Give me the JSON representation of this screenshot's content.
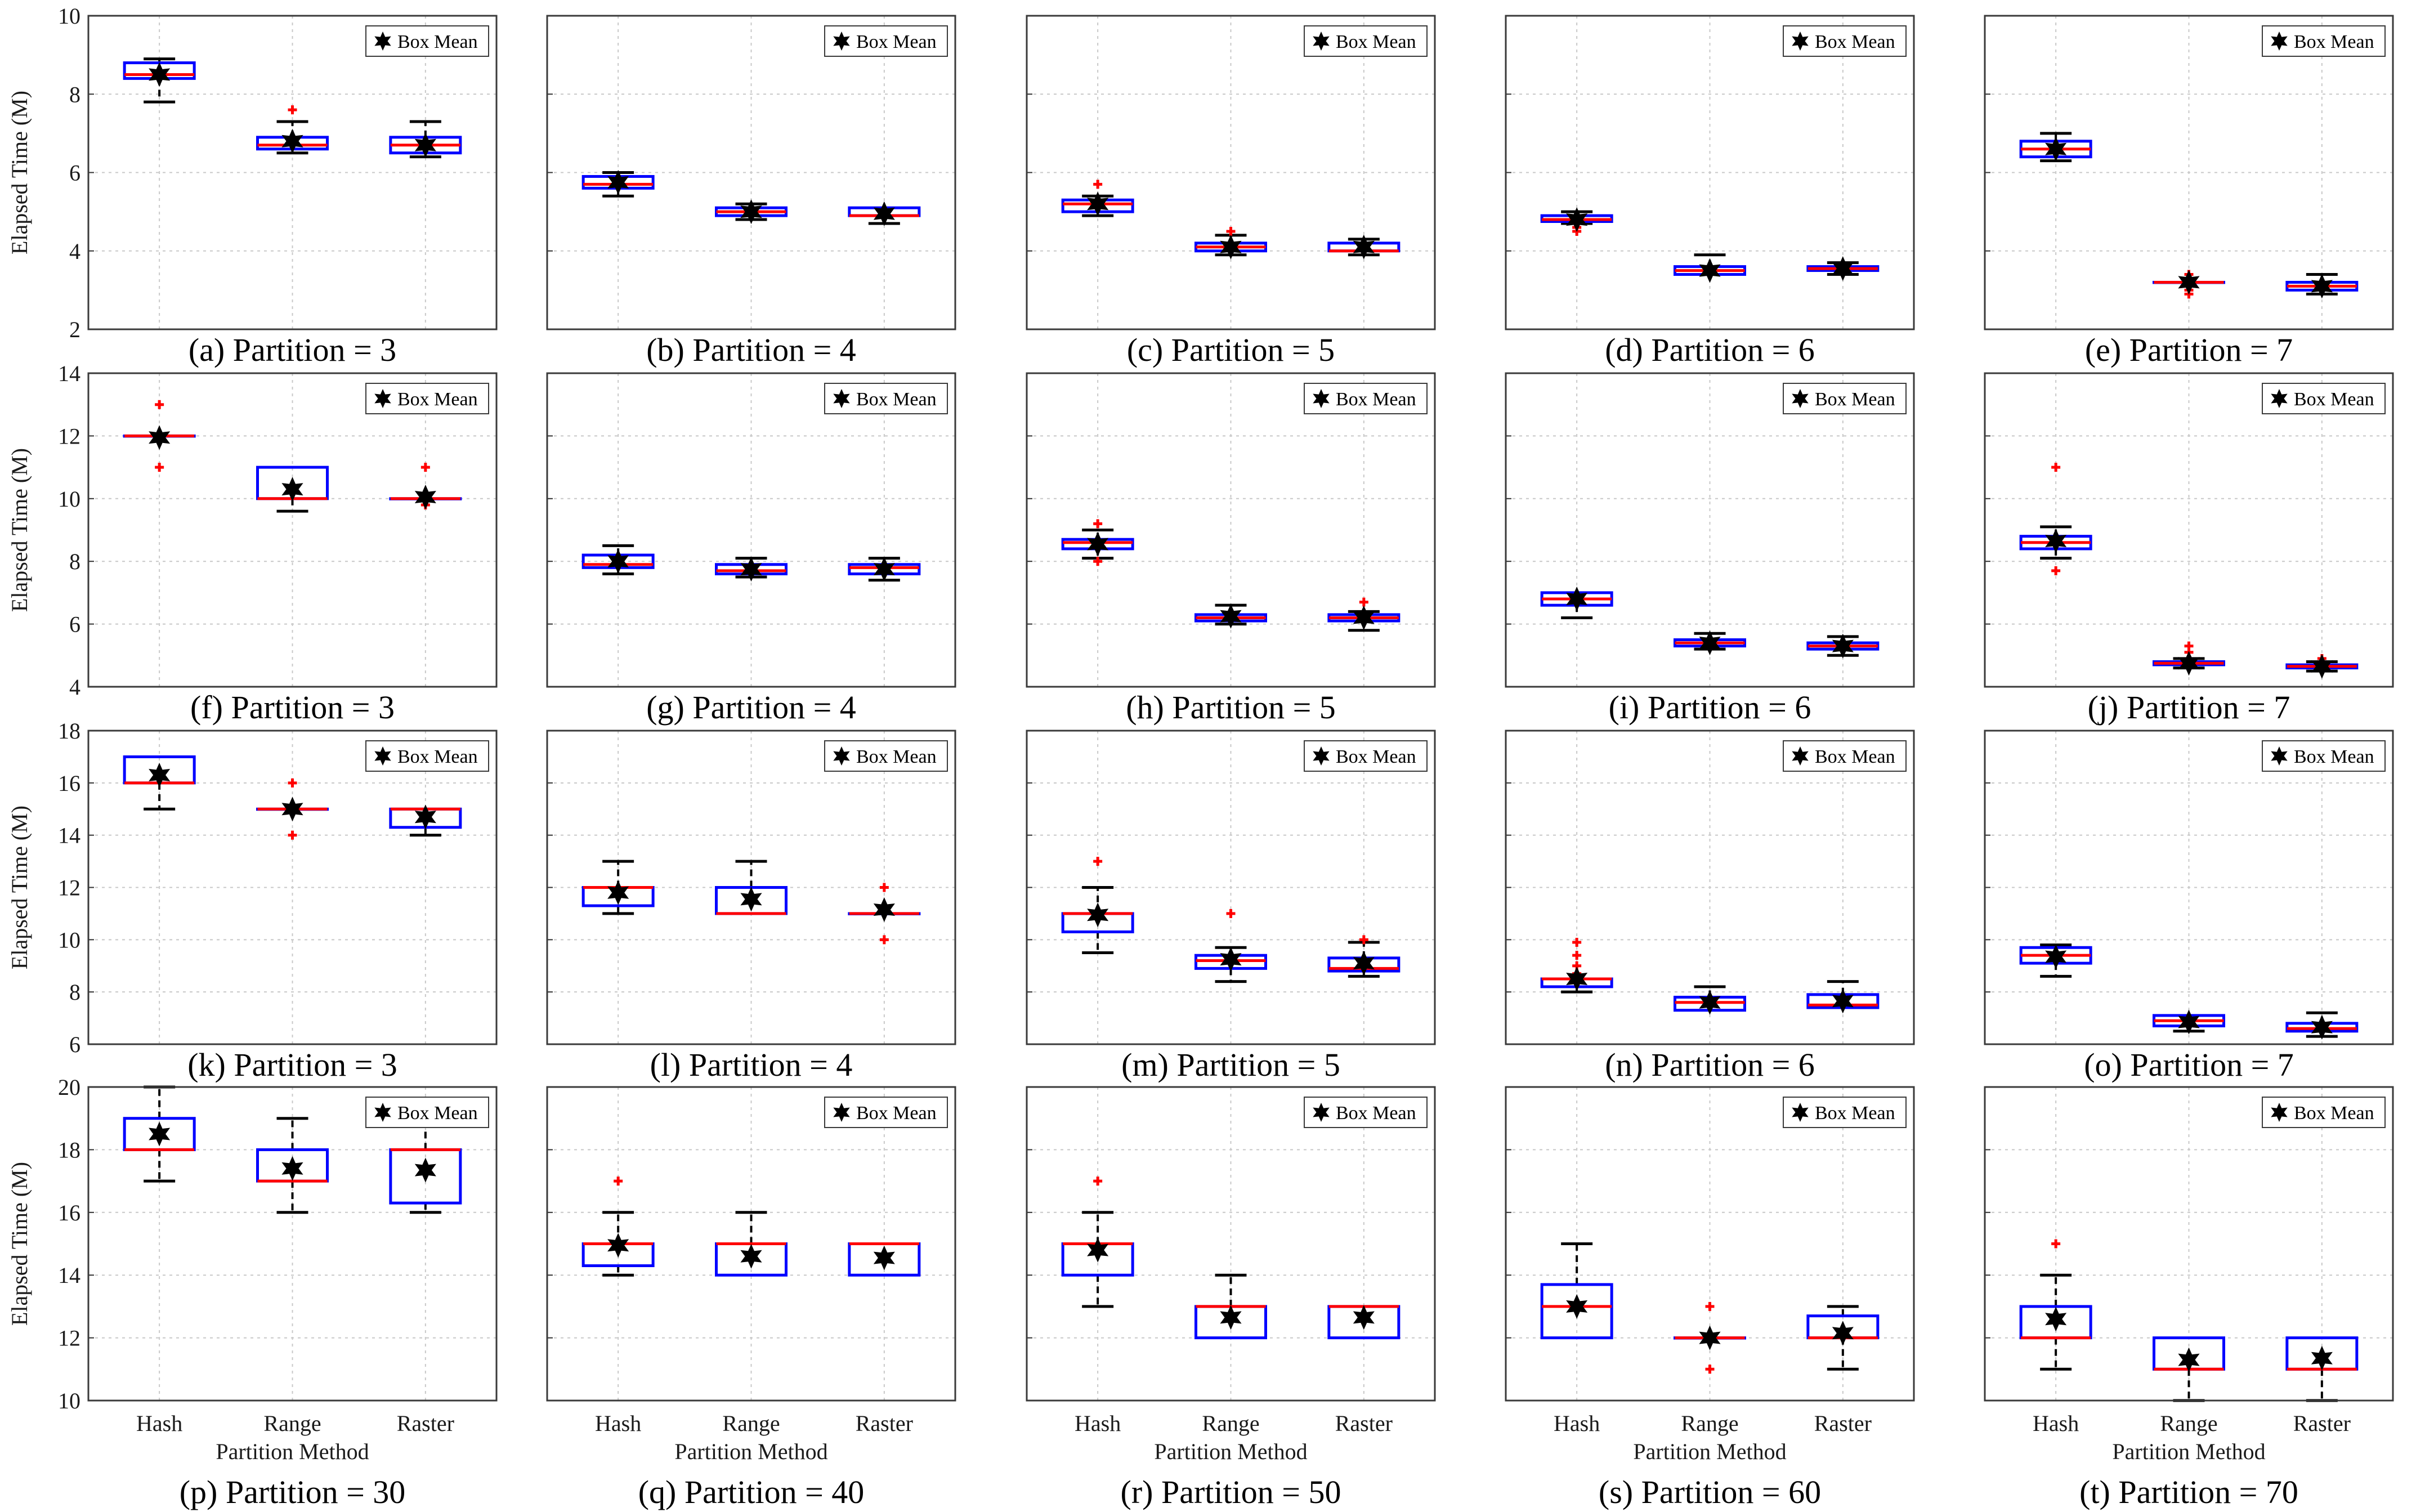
{
  "figure": {
    "ylabel": "Elapsed Time (M)",
    "xlabel": "Partition Method",
    "legend_label": "Box Mean",
    "colors": {
      "box": "#0000ff",
      "median": "#ff0000",
      "whisker": "#000000",
      "outlier": "#ff0000",
      "mean": "#000000",
      "grid": "#c8c8c8"
    }
  },
  "chart_data": [
    {
      "type": "box",
      "caption": "(a) Partition = 3",
      "categories": [
        "Hash",
        "Range",
        "Raster"
      ],
      "ylim": [
        2,
        10
      ],
      "yticks": [
        2,
        4,
        6,
        8,
        10
      ],
      "boxes": [
        {
          "q1": 8.4,
          "median": 8.5,
          "q3": 8.8,
          "whisker_low": 7.8,
          "whisker_high": 8.9,
          "mean": 8.5,
          "outliers": []
        },
        {
          "q1": 6.6,
          "median": 6.7,
          "q3": 6.9,
          "whisker_low": 6.5,
          "whisker_high": 7.3,
          "mean": 6.8,
          "outliers": [
            7.6
          ]
        },
        {
          "q1": 6.5,
          "median": 6.7,
          "q3": 6.9,
          "whisker_low": 6.4,
          "whisker_high": 7.3,
          "mean": 6.7,
          "outliers": []
        }
      ]
    },
    {
      "type": "box",
      "caption": "(b) Partition = 4",
      "categories": [
        "Hash",
        "Range",
        "Raster"
      ],
      "ylim": [
        2,
        10
      ],
      "yticks": [
        2,
        4,
        6,
        8,
        10
      ],
      "boxes": [
        {
          "q1": 5.6,
          "median": 5.7,
          "q3": 5.9,
          "whisker_low": 5.4,
          "whisker_high": 6.0,
          "mean": 5.75,
          "outliers": []
        },
        {
          "q1": 4.9,
          "median": 5.0,
          "q3": 5.1,
          "whisker_low": 4.8,
          "whisker_high": 5.2,
          "mean": 5.0,
          "outliers": []
        },
        {
          "q1": 4.9,
          "median": 4.9,
          "q3": 5.1,
          "whisker_low": 4.7,
          "whisker_high": 5.1,
          "mean": 4.95,
          "outliers": []
        }
      ]
    },
    {
      "type": "box",
      "caption": "(c) Partition = 5",
      "categories": [
        "Hash",
        "Range",
        "Raster"
      ],
      "ylim": [
        2,
        10
      ],
      "yticks": [
        2,
        4,
        6,
        8,
        10
      ],
      "boxes": [
        {
          "q1": 5.0,
          "median": 5.2,
          "q3": 5.3,
          "whisker_low": 4.9,
          "whisker_high": 5.4,
          "mean": 5.2,
          "outliers": [
            5.7
          ]
        },
        {
          "q1": 4.0,
          "median": 4.1,
          "q3": 4.2,
          "whisker_low": 3.9,
          "whisker_high": 4.4,
          "mean": 4.1,
          "outliers": [
            4.5
          ]
        },
        {
          "q1": 4.0,
          "median": 4.0,
          "q3": 4.2,
          "whisker_low": 3.9,
          "whisker_high": 4.3,
          "mean": 4.1,
          "outliers": []
        }
      ]
    },
    {
      "type": "box",
      "caption": "(d) Partition = 6",
      "categories": [
        "Hash",
        "Range",
        "Raster"
      ],
      "ylim": [
        2,
        10
      ],
      "yticks": [
        2,
        4,
        6,
        8,
        10
      ],
      "boxes": [
        {
          "q1": 4.75,
          "median": 4.8,
          "q3": 4.9,
          "whisker_low": 4.7,
          "whisker_high": 5.0,
          "mean": 4.8,
          "outliers": [
            4.6,
            4.5
          ]
        },
        {
          "q1": 3.4,
          "median": 3.5,
          "q3": 3.6,
          "whisker_low": 3.4,
          "whisker_high": 3.9,
          "mean": 3.5,
          "outliers": []
        },
        {
          "q1": 3.5,
          "median": 3.55,
          "q3": 3.6,
          "whisker_low": 3.4,
          "whisker_high": 3.7,
          "mean": 3.55,
          "outliers": []
        }
      ]
    },
    {
      "type": "box",
      "caption": "(e) Partition = 7",
      "categories": [
        "Hash",
        "Range",
        "Raster"
      ],
      "ylim": [
        2,
        10
      ],
      "yticks": [
        2,
        4,
        6,
        8,
        10
      ],
      "boxes": [
        {
          "q1": 6.4,
          "median": 6.6,
          "q3": 6.8,
          "whisker_low": 6.3,
          "whisker_high": 7.0,
          "mean": 6.6,
          "outliers": []
        },
        {
          "q1": 3.2,
          "median": 3.2,
          "q3": 3.2,
          "whisker_low": 3.2,
          "whisker_high": 3.2,
          "mean": 3.2,
          "outliers": [
            3.4,
            3.3,
            3.0,
            2.9
          ]
        },
        {
          "q1": 3.0,
          "median": 3.1,
          "q3": 3.2,
          "whisker_low": 2.9,
          "whisker_high": 3.4,
          "mean": 3.1,
          "outliers": []
        }
      ]
    },
    {
      "type": "box",
      "caption": "(f) Partition = 3",
      "categories": [
        "Hash",
        "Range",
        "Raster"
      ],
      "ylim": [
        4,
        14
      ],
      "yticks": [
        4,
        6,
        8,
        10,
        12,
        14
      ],
      "boxes": [
        {
          "q1": 12,
          "median": 12,
          "q3": 12,
          "whisker_low": 12,
          "whisker_high": 12,
          "mean": 11.95,
          "outliers": [
            13,
            11
          ]
        },
        {
          "q1": 10,
          "median": 10,
          "q3": 11,
          "whisker_low": 9.6,
          "whisker_high": 11,
          "mean": 10.3,
          "outliers": []
        },
        {
          "q1": 10,
          "median": 10,
          "q3": 10,
          "whisker_low": 10,
          "whisker_high": 10,
          "mean": 10.05,
          "outliers": [
            11,
            9.8
          ]
        }
      ]
    },
    {
      "type": "box",
      "caption": "(g) Partition = 4",
      "categories": [
        "Hash",
        "Range",
        "Raster"
      ],
      "ylim": [
        4,
        14
      ],
      "yticks": [
        4,
        6,
        8,
        10,
        12,
        14
      ],
      "boxes": [
        {
          "q1": 7.8,
          "median": 7.9,
          "q3": 8.2,
          "whisker_low": 7.6,
          "whisker_high": 8.5,
          "mean": 8.0,
          "outliers": []
        },
        {
          "q1": 7.6,
          "median": 7.7,
          "q3": 7.9,
          "whisker_low": 7.5,
          "whisker_high": 8.1,
          "mean": 7.75,
          "outliers": []
        },
        {
          "q1": 7.6,
          "median": 7.8,
          "q3": 7.9,
          "whisker_low": 7.4,
          "whisker_high": 8.1,
          "mean": 7.75,
          "outliers": []
        }
      ]
    },
    {
      "type": "box",
      "caption": "(h) Partition = 5",
      "categories": [
        "Hash",
        "Range",
        "Raster"
      ],
      "ylim": [
        4,
        14
      ],
      "yticks": [
        4,
        6,
        8,
        10,
        12,
        14
      ],
      "boxes": [
        {
          "q1": 8.4,
          "median": 8.6,
          "q3": 8.7,
          "whisker_low": 8.1,
          "whisker_high": 9.0,
          "mean": 8.55,
          "outliers": [
            9.2,
            8.0
          ]
        },
        {
          "q1": 6.1,
          "median": 6.2,
          "q3": 6.3,
          "whisker_low": 6.0,
          "whisker_high": 6.6,
          "mean": 6.25,
          "outliers": []
        },
        {
          "q1": 6.1,
          "median": 6.2,
          "q3": 6.3,
          "whisker_low": 5.8,
          "whisker_high": 6.4,
          "mean": 6.2,
          "outliers": [
            6.7
          ]
        }
      ]
    },
    {
      "type": "box",
      "caption": "(i) Partition = 6",
      "categories": [
        "Hash",
        "Range",
        "Raster"
      ],
      "ylim": [
        4,
        14
      ],
      "yticks": [
        4,
        6,
        8,
        10,
        12,
        14
      ],
      "boxes": [
        {
          "q1": 6.6,
          "median": 6.8,
          "q3": 7.0,
          "whisker_low": 6.2,
          "whisker_high": 7.0,
          "mean": 6.8,
          "outliers": []
        },
        {
          "q1": 5.3,
          "median": 5.4,
          "q3": 5.5,
          "whisker_low": 5.2,
          "whisker_high": 5.7,
          "mean": 5.4,
          "outliers": []
        },
        {
          "q1": 5.2,
          "median": 5.3,
          "q3": 5.4,
          "whisker_low": 5.0,
          "whisker_high": 5.6,
          "mean": 5.3,
          "outliers": []
        }
      ]
    },
    {
      "type": "box",
      "caption": "(j) Partition = 7",
      "categories": [
        "Hash",
        "Range",
        "Raster"
      ],
      "ylim": [
        4,
        14
      ],
      "yticks": [
        4,
        6,
        8,
        10,
        12,
        14
      ],
      "boxes": [
        {
          "q1": 8.4,
          "median": 8.6,
          "q3": 8.8,
          "whisker_low": 8.1,
          "whisker_high": 9.1,
          "mean": 8.65,
          "outliers": [
            11,
            7.7
          ]
        },
        {
          "q1": 4.7,
          "median": 4.75,
          "q3": 4.8,
          "whisker_low": 4.6,
          "whisker_high": 4.9,
          "mean": 4.75,
          "outliers": [
            5.3,
            5.1
          ]
        },
        {
          "q1": 4.6,
          "median": 4.65,
          "q3": 4.7,
          "whisker_low": 4.5,
          "whisker_high": 4.8,
          "mean": 4.65,
          "outliers": [
            4.9
          ]
        }
      ]
    },
    {
      "type": "box",
      "caption": "(k) Partition = 3",
      "categories": [
        "Hash",
        "Range",
        "Raster"
      ],
      "ylim": [
        6,
        18
      ],
      "yticks": [
        6,
        8,
        10,
        12,
        14,
        16,
        18
      ],
      "boxes": [
        {
          "q1": 16,
          "median": 16,
          "q3": 17,
          "whisker_low": 15,
          "whisker_high": 17,
          "mean": 16.3,
          "outliers": []
        },
        {
          "q1": 15,
          "median": 15,
          "q3": 15,
          "whisker_low": 15,
          "whisker_high": 15,
          "mean": 15.0,
          "outliers": [
            16,
            14
          ]
        },
        {
          "q1": 14.3,
          "median": 15,
          "q3": 15,
          "whisker_low": 14,
          "whisker_high": 15,
          "mean": 14.7,
          "outliers": []
        }
      ]
    },
    {
      "type": "box",
      "caption": "(l) Partition = 4",
      "categories": [
        "Hash",
        "Range",
        "Raster"
      ],
      "ylim": [
        6,
        18
      ],
      "yticks": [
        6,
        8,
        10,
        12,
        14,
        16,
        18
      ],
      "boxes": [
        {
          "q1": 11.3,
          "median": 12,
          "q3": 12,
          "whisker_low": 11,
          "whisker_high": 13,
          "mean": 11.8,
          "outliers": []
        },
        {
          "q1": 11,
          "median": 11,
          "q3": 12,
          "whisker_low": 11,
          "whisker_high": 13,
          "mean": 11.55,
          "outliers": []
        },
        {
          "q1": 11,
          "median": 11,
          "q3": 11,
          "whisker_low": 11,
          "whisker_high": 11,
          "mean": 11.15,
          "outliers": [
            12,
            10
          ]
        }
      ]
    },
    {
      "type": "box",
      "caption": "(m) Partition = 5",
      "categories": [
        "Hash",
        "Range",
        "Raster"
      ],
      "ylim": [
        6,
        18
      ],
      "yticks": [
        6,
        8,
        10,
        12,
        14,
        16,
        18
      ],
      "boxes": [
        {
          "q1": 10.3,
          "median": 11,
          "q3": 11,
          "whisker_low": 9.5,
          "whisker_high": 12,
          "mean": 10.95,
          "outliers": [
            13
          ]
        },
        {
          "q1": 8.9,
          "median": 9.2,
          "q3": 9.4,
          "whisker_low": 8.4,
          "whisker_high": 9.7,
          "mean": 9.25,
          "outliers": [
            11
          ]
        },
        {
          "q1": 8.8,
          "median": 8.9,
          "q3": 9.3,
          "whisker_low": 8.6,
          "whisker_high": 9.9,
          "mean": 9.1,
          "outliers": [
            10
          ]
        }
      ]
    },
    {
      "type": "box",
      "caption": "(n) Partition = 6",
      "categories": [
        "Hash",
        "Range",
        "Raster"
      ],
      "ylim": [
        6,
        18
      ],
      "yticks": [
        6,
        8,
        10,
        12,
        14,
        16,
        18
      ],
      "boxes": [
        {
          "q1": 8.2,
          "median": 8.5,
          "q3": 8.5,
          "whisker_low": 8.0,
          "whisker_high": 8.5,
          "mean": 8.5,
          "outliers": [
            9.9,
            9.4,
            9.0,
            8.7
          ]
        },
        {
          "q1": 7.3,
          "median": 7.6,
          "q3": 7.8,
          "whisker_low": 7.3,
          "whisker_high": 8.2,
          "mean": 7.6,
          "outliers": []
        },
        {
          "q1": 7.4,
          "median": 7.5,
          "q3": 7.9,
          "whisker_low": 7.4,
          "whisker_high": 8.4,
          "mean": 7.65,
          "outliers": []
        }
      ]
    },
    {
      "type": "box",
      "caption": "(o) Partition = 7",
      "categories": [
        "Hash",
        "Range",
        "Raster"
      ],
      "ylim": [
        6,
        18
      ],
      "yticks": [
        6,
        8,
        10,
        12,
        14,
        16,
        18
      ],
      "boxes": [
        {
          "q1": 9.1,
          "median": 9.4,
          "q3": 9.7,
          "whisker_low": 8.6,
          "whisker_high": 9.8,
          "mean": 9.35,
          "outliers": []
        },
        {
          "q1": 6.7,
          "median": 6.9,
          "q3": 7.1,
          "whisker_low": 6.5,
          "whisker_high": 7.1,
          "mean": 6.85,
          "outliers": []
        },
        {
          "q1": 6.5,
          "median": 6.6,
          "q3": 6.8,
          "whisker_low": 6.3,
          "whisker_high": 7.2,
          "mean": 6.65,
          "outliers": []
        }
      ]
    },
    {
      "type": "box",
      "caption": "(p) Partition = 30",
      "categories": [
        "Hash",
        "Range",
        "Raster"
      ],
      "ylim": [
        10,
        20
      ],
      "yticks": [
        10,
        12,
        14,
        16,
        18,
        20
      ],
      "boxes": [
        {
          "q1": 18,
          "median": 18,
          "q3": 19,
          "whisker_low": 17,
          "whisker_high": 20,
          "mean": 18.5,
          "outliers": []
        },
        {
          "q1": 17,
          "median": 17,
          "q3": 18,
          "whisker_low": 16,
          "whisker_high": 19,
          "mean": 17.4,
          "outliers": []
        },
        {
          "q1": 16.3,
          "median": 18,
          "q3": 18,
          "whisker_low": 16,
          "whisker_high": 19,
          "mean": 17.35,
          "outliers": []
        }
      ]
    },
    {
      "type": "box",
      "caption": "(q) Partition = 40",
      "categories": [
        "Hash",
        "Range",
        "Raster"
      ],
      "ylim": [
        10,
        20
      ],
      "yticks": [
        10,
        12,
        14,
        16,
        18,
        20
      ],
      "boxes": [
        {
          "q1": 14.3,
          "median": 15,
          "q3": 15,
          "whisker_low": 14,
          "whisker_high": 16,
          "mean": 14.95,
          "outliers": [
            17
          ]
        },
        {
          "q1": 14,
          "median": 15,
          "q3": 15,
          "whisker_low": 14,
          "whisker_high": 16,
          "mean": 14.6,
          "outliers": []
        },
        {
          "q1": 14,
          "median": 15,
          "q3": 15,
          "whisker_low": 14,
          "whisker_high": 15,
          "mean": 14.55,
          "outliers": []
        }
      ]
    },
    {
      "type": "box",
      "caption": "(r) Partition = 50",
      "categories": [
        "Hash",
        "Range",
        "Raster"
      ],
      "ylim": [
        10,
        20
      ],
      "yticks": [
        10,
        12,
        14,
        16,
        18,
        20
      ],
      "boxes": [
        {
          "q1": 14,
          "median": 15,
          "q3": 15,
          "whisker_low": 13,
          "whisker_high": 16,
          "mean": 14.8,
          "outliers": [
            17
          ]
        },
        {
          "q1": 12,
          "median": 13,
          "q3": 13,
          "whisker_low": 12,
          "whisker_high": 14,
          "mean": 12.65,
          "outliers": []
        },
        {
          "q1": 12,
          "median": 13,
          "q3": 13,
          "whisker_low": 12,
          "whisker_high": 13,
          "mean": 12.65,
          "outliers": []
        }
      ]
    },
    {
      "type": "box",
      "caption": "(s) Partition = 60",
      "categories": [
        "Hash",
        "Range",
        "Raster"
      ],
      "ylim": [
        10,
        20
      ],
      "yticks": [
        10,
        12,
        14,
        16,
        18,
        20
      ],
      "boxes": [
        {
          "q1": 12,
          "median": 13,
          "q3": 13.7,
          "whisker_low": 12,
          "whisker_high": 15,
          "mean": 13.0,
          "outliers": []
        },
        {
          "q1": 12,
          "median": 12,
          "q3": 12,
          "whisker_low": 12,
          "whisker_high": 12,
          "mean": 12.0,
          "outliers": [
            13,
            11
          ]
        },
        {
          "q1": 12,
          "median": 12,
          "q3": 12.7,
          "whisker_low": 11,
          "whisker_high": 13,
          "mean": 12.15,
          "outliers": []
        }
      ]
    },
    {
      "type": "box",
      "caption": "(t) Partition = 70",
      "categories": [
        "Hash",
        "Range",
        "Raster"
      ],
      "ylim": [
        10,
        20
      ],
      "yticks": [
        10,
        12,
        14,
        16,
        18,
        20
      ],
      "boxes": [
        {
          "q1": 12,
          "median": 12,
          "q3": 13,
          "whisker_low": 11,
          "whisker_high": 14,
          "mean": 12.6,
          "outliers": [
            15
          ]
        },
        {
          "q1": 11,
          "median": 11,
          "q3": 12,
          "whisker_low": 10,
          "whisker_high": 12,
          "mean": 11.3,
          "outliers": []
        },
        {
          "q1": 11,
          "median": 11,
          "q3": 12,
          "whisker_low": 10,
          "whisker_high": 12,
          "mean": 11.35,
          "outliers": []
        }
      ]
    }
  ]
}
